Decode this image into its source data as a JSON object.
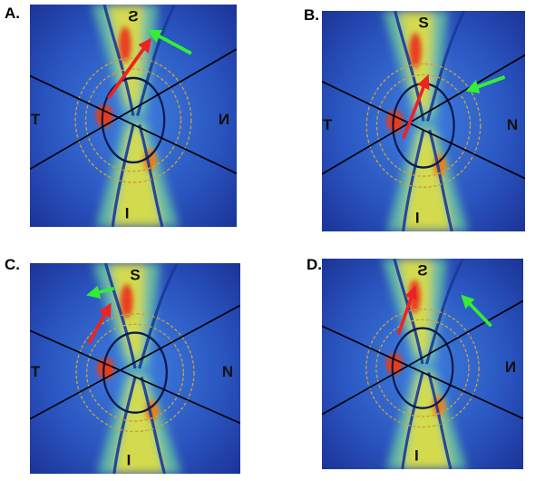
{
  "panels": [
    {
      "label": "A.",
      "letters": {
        "top": "S",
        "bottom": "I",
        "left": "T",
        "right": "N"
      },
      "mirrored": true
    },
    {
      "label": "B.",
      "letters": {
        "top": "S",
        "bottom": "I",
        "left": "T",
        "right": "N"
      },
      "mirrored": false
    },
    {
      "label": "C.",
      "letters": {
        "top": "S",
        "bottom": "I",
        "left": "T",
        "right": "N"
      },
      "mirrored": false
    },
    {
      "label": "D.",
      "letters": {
        "top": "S",
        "bottom": "I",
        "right": "N"
      },
      "mirrored": true
    }
  ]
}
